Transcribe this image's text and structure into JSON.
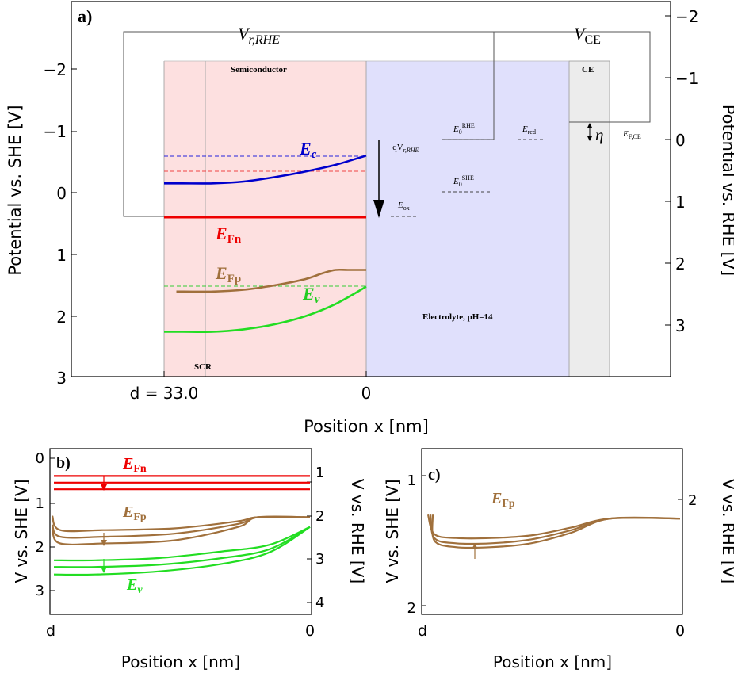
{
  "panel_a": {
    "label": "a)",
    "y_left_label": "Potential vs. SHE [V]",
    "y_right_label": "Potential vs. RHE [V]",
    "x_label": "Position x [nm]",
    "x_tick_left": "d = 33.0",
    "x_tick_right": "0",
    "region_semiconductor": "Semiconductor",
    "region_electrolyte": "Electrolyte, pH=14",
    "region_ce": "CE",
    "scr_label": "SCR",
    "vr_label": "V",
    "vr_sub": "r,RHE",
    "vce_label": "V",
    "vce_sub": "CE",
    "eta_label": "η",
    "ef_ce_label": "E",
    "ef_ce_sub": "F,CE",
    "qv_label": "−qV",
    "qv_sub": "r,RHE",
    "e0rhe_label": "E",
    "e0rhe_sub": "0",
    "e0rhe_sup": "RHE",
    "e0she_label": "E",
    "e0she_sub": "0",
    "e0she_sup": "SHE",
    "ered_label": "E",
    "ered_sub": "red",
    "eox_label": "E",
    "eox_sub": "ox",
    "ec_label": "E",
    "ec_sub": "c",
    "efn_label": "E",
    "efn_sub": "Fn",
    "efp_label": "E",
    "efp_sub": "Fp",
    "ev_label": "E",
    "ev_sub": "v",
    "colors": {
      "ec": "#0000cc",
      "efn": "#ee0000",
      "efp": "#a0703c",
      "ev": "#22dd22",
      "semiconductor_fill": "#fde0e0",
      "electrolyte_fill": "#e0e0fc",
      "ce_fill": "#ececec"
    }
  },
  "panel_b": {
    "label": "b)",
    "y_left_label": "V vs. SHE [V]",
    "y_right_label": "V vs. RHE [V]",
    "x_label": "Position x [nm]",
    "x_tick_left": "d",
    "x_tick_right": "0",
    "efn_label": "E",
    "efn_sub": "Fn",
    "efp_label": "E",
    "efp_sub": "Fp",
    "ev_label": "E",
    "ev_sub": "v"
  },
  "panel_c": {
    "label": "c)",
    "y_left_label": "V vs. SHE [V]",
    "y_right_label": "V vs. RHE [V]",
    "x_label": "Position x [nm]",
    "x_tick_left": "d",
    "x_tick_right": "0",
    "efp_label": "E",
    "efp_sub": "Fp"
  },
  "chart_data": [
    {
      "type": "line",
      "panel": "a",
      "xlabel": "Position x [nm]",
      "ylabel": "Potential vs. SHE [V]",
      "ylabel_right": "Potential vs. RHE [V]",
      "y_inverted": true,
      "ylim": [
        3,
        -2.5
      ],
      "x_ticks": [
        "d = 33.0",
        "0"
      ],
      "y_ticks": [
        -2,
        -1,
        0,
        1,
        2,
        3
      ],
      "y_ticks_right": [
        -2,
        -1,
        0,
        1,
        2,
        3
      ],
      "series": [
        {
          "name": "E_c",
          "x": [
            33,
            30,
            25,
            20,
            15,
            10,
            5,
            0
          ],
          "values": [
            -0.15,
            -0.15,
            -0.15,
            -0.18,
            -0.25,
            -0.34,
            -0.45,
            -0.6
          ]
        },
        {
          "name": "E_Fn",
          "x": [
            33,
            0
          ],
          "values": [
            0.4,
            0.4
          ]
        },
        {
          "name": "E_Fp",
          "x": [
            31,
            25,
            20,
            15,
            10,
            7,
            5,
            3,
            0
          ],
          "values": [
            1.6,
            1.6,
            1.57,
            1.5,
            1.4,
            1.3,
            1.25,
            1.25,
            1.25
          ]
        },
        {
          "name": "E_v",
          "x": [
            33,
            30,
            25,
            20,
            15,
            10,
            5,
            0
          ],
          "values": [
            2.25,
            2.25,
            2.25,
            2.21,
            2.13,
            2.0,
            1.8,
            1.52
          ]
        }
      ],
      "levels": {
        "E_c_surface_dashed": -0.6,
        "E_Fn_reference_dashed": -0.33,
        "E_v_surface_dashed": 1.52,
        "E_0_RHE": 0.0,
        "E_0_SHE": 0.8,
        "E_red": 0.0,
        "E_ox": 1.2,
        "E_F_CE": -0.1
      }
    },
    {
      "type": "line",
      "panel": "b",
      "xlabel": "Position x [nm]",
      "ylabel": "V vs. SHE [V]",
      "ylabel_right": "V vs. RHE [V]",
      "y_inverted": true,
      "ylim": [
        3.5,
        -0.1
      ],
      "y_ticks": [
        0,
        1,
        2,
        3
      ],
      "y_ticks_right": [
        1,
        2,
        3,
        4
      ],
      "x_ticks": [
        "d",
        "0"
      ],
      "series": [
        {
          "name": "E_Fn 1",
          "values": [
            0.4,
            0.4
          ]
        },
        {
          "name": "E_Fn 2",
          "values": [
            0.55,
            0.55
          ]
        },
        {
          "name": "E_Fn 3",
          "values": [
            0.7,
            0.7
          ]
        },
        {
          "name": "E_Fp 1",
          "values": [
            1.3,
            1.62,
            1.62,
            1.58,
            1.42,
            1.33,
            1.33
          ]
        },
        {
          "name": "E_Fp 2",
          "values": [
            1.5,
            1.77,
            1.77,
            1.7,
            1.48,
            1.33,
            1.33
          ]
        },
        {
          "name": "E_Fp 3",
          "values": [
            1.62,
            1.92,
            1.92,
            1.85,
            1.55,
            1.33,
            1.33
          ]
        },
        {
          "name": "E_v 1",
          "values": [
            2.3,
            2.3,
            2.25,
            2.1,
            1.95,
            1.55
          ]
        },
        {
          "name": "E_v 2",
          "values": [
            2.45,
            2.45,
            2.4,
            2.25,
            2.05,
            1.55
          ]
        },
        {
          "name": "E_v 3",
          "values": [
            2.62,
            2.62,
            2.55,
            2.38,
            2.12,
            1.55
          ]
        }
      ]
    },
    {
      "type": "line",
      "panel": "c",
      "xlabel": "Position x [nm]",
      "ylabel": "V vs. SHE [V]",
      "ylabel_right": "V vs. RHE [V]",
      "y_inverted": true,
      "ylim": [
        2.1,
        0.85
      ],
      "y_ticks": [
        1,
        2
      ],
      "y_ticks_right": [
        2
      ],
      "x_ticks": [
        "d",
        "0"
      ],
      "series": [
        {
          "name": "E_Fp 1",
          "values": [
            1.3,
            1.45,
            1.48,
            1.48,
            1.46,
            1.4,
            1.33,
            1.33
          ]
        },
        {
          "name": "E_Fp 2",
          "values": [
            1.3,
            1.48,
            1.52,
            1.52,
            1.49,
            1.42,
            1.33,
            1.33
          ]
        },
        {
          "name": "E_Fp 3",
          "values": [
            1.3,
            1.5,
            1.55,
            1.55,
            1.52,
            1.44,
            1.33,
            1.33
          ]
        }
      ]
    }
  ]
}
